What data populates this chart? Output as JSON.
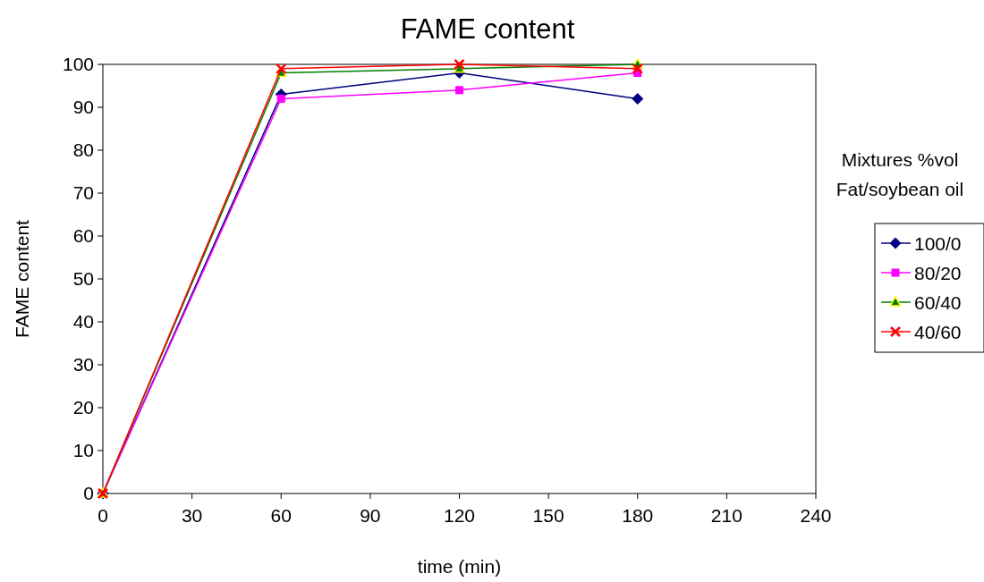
{
  "chart_data": {
    "type": "line",
    "title": "FAME content",
    "xlabel": "time (min)",
    "ylabel": "FAME content",
    "legend_title": "Mixtures %vol\nFat/soybean oil",
    "legend": "right",
    "grid": false,
    "line_style": "solid",
    "x": [
      0,
      60,
      120,
      180
    ],
    "xlim": [
      0,
      240
    ],
    "xticks": [
      0,
      30,
      60,
      90,
      120,
      150,
      180,
      210,
      240
    ],
    "ylim": [
      0,
      100
    ],
    "yticks": [
      0,
      10,
      20,
      30,
      40,
      50,
      60,
      70,
      80,
      90,
      100
    ],
    "series": [
      {
        "name": "100/0",
        "color": "#000080",
        "marker": "diamond",
        "values": [
          0,
          93,
          98,
          92
        ]
      },
      {
        "name": "80/20",
        "color": "#ff00ff",
        "marker": "square",
        "values": [
          0,
          92,
          94,
          98
        ]
      },
      {
        "name": "60/40",
        "color": "#008000",
        "marker": "triangle",
        "values": [
          0,
          98,
          99,
          100
        ]
      },
      {
        "name": "40/60",
        "color": "#ff0000",
        "marker": "cross",
        "values": [
          0,
          99,
          100,
          99
        ]
      }
    ]
  }
}
